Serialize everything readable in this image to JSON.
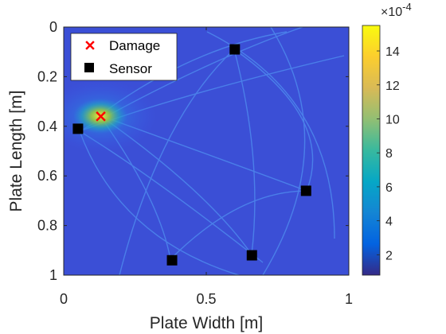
{
  "chart_data": {
    "type": "heatmap",
    "title": "",
    "xlabel": "Plate Width [m]",
    "ylabel": "Plate Length [m]",
    "xlim": [
      0,
      1
    ],
    "ylim": [
      0,
      1
    ],
    "y_direction": "reversed",
    "x_ticks": [
      0,
      0.5,
      1
    ],
    "x_tick_labels": [
      "0",
      "0.5",
      "1"
    ],
    "y_ticks": [
      0,
      0.2,
      0.4,
      0.6,
      0.8,
      1
    ],
    "y_tick_labels": [
      "0",
      "0.2",
      "0.4",
      "0.6",
      "0.8",
      "1"
    ],
    "colormap": "parula",
    "colorbar": {
      "min": 0.8,
      "max": 15.5,
      "ticks": [
        2,
        4,
        6,
        8,
        10,
        12,
        14
      ],
      "tick_labels": [
        "2",
        "4",
        "6",
        "8",
        "10",
        "12",
        "14"
      ],
      "exponent_label": "×10",
      "exponent_power": "-4"
    },
    "damage": {
      "name": "Damage",
      "x": 0.13,
      "y": 0.36,
      "color": "#ff0000"
    },
    "sensors": {
      "name": "Sensor",
      "color": "#000000",
      "points": [
        {
          "x": 0.6,
          "y": 0.09
        },
        {
          "x": 0.05,
          "y": 0.41
        },
        {
          "x": 0.85,
          "y": 0.66
        },
        {
          "x": 0.66,
          "y": 0.92
        },
        {
          "x": 0.38,
          "y": 0.94
        }
      ]
    },
    "legend": {
      "location": "top-left",
      "entries": [
        "Damage",
        "Sensor"
      ]
    },
    "grid": false
  }
}
